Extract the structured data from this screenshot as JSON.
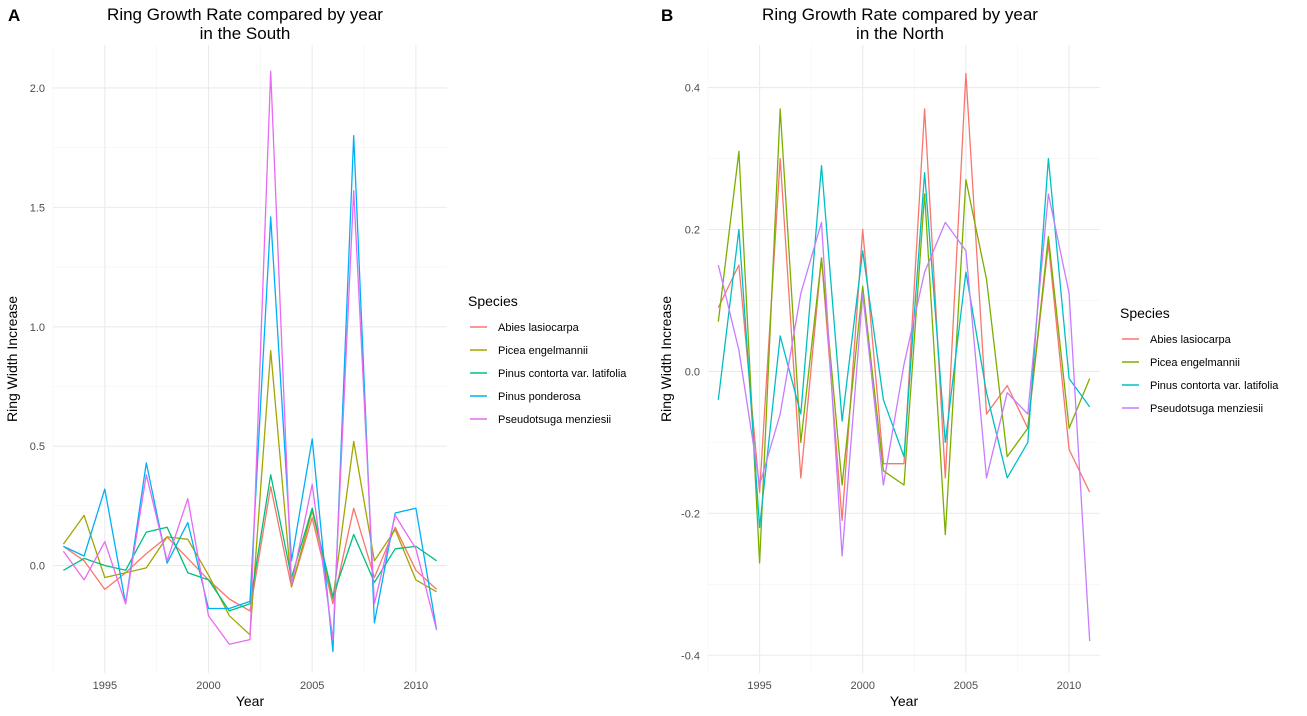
{
  "chart_data": [
    {
      "panel": "A",
      "type": "line",
      "title": "Ring Growth Rate compared by year\nin the South",
      "xlabel": "Year",
      "ylabel": "Ring Width Increase",
      "xlim": [
        1992.5,
        2011.5
      ],
      "ylim": [
        -0.45,
        2.18
      ],
      "x_ticks": [
        1995,
        2000,
        2005,
        2010
      ],
      "y_ticks": [
        0.0,
        0.5,
        1.0,
        1.5,
        2.0
      ],
      "y_tick_labels": [
        "0.0",
        "0.5",
        "1.0",
        "1.5",
        "2.0"
      ],
      "grid": true,
      "legend_title": "Species",
      "legend_position": "right",
      "x": [
        1993,
        1994,
        1995,
        1996,
        1997,
        1998,
        1999,
        2000,
        2001,
        2002,
        2003,
        2004,
        2005,
        2006,
        2007,
        2008,
        2009,
        2010,
        2011
      ],
      "series": [
        {
          "name": "Abies lasiocarpa",
          "color": "#F8766D",
          "values": [
            0.08,
            0.02,
            -0.1,
            -0.03,
            0.05,
            0.12,
            0.03,
            -0.06,
            -0.14,
            -0.19,
            0.33,
            -0.09,
            0.2,
            -0.16,
            0.24,
            -0.05,
            0.16,
            -0.02,
            -0.1
          ]
        },
        {
          "name": "Picea engelmannii",
          "color": "#A3A500",
          "values": [
            0.09,
            0.21,
            -0.05,
            -0.03,
            -0.01,
            0.12,
            0.11,
            -0.04,
            -0.21,
            -0.29,
            0.9,
            -0.09,
            0.23,
            -0.14,
            0.52,
            0.02,
            0.15,
            -0.06,
            -0.11
          ]
        },
        {
          "name": "Pinus contorta var. latifolia",
          "color": "#00BF7D",
          "values": [
            -0.02,
            0.03,
            0.0,
            -0.02,
            0.14,
            0.16,
            -0.03,
            -0.06,
            -0.19,
            -0.16,
            0.38,
            -0.05,
            0.24,
            -0.13,
            0.13,
            -0.07,
            0.07,
            0.08,
            0.02
          ]
        },
        {
          "name": "Pinus ponderosa",
          "color": "#00B0F6",
          "values": [
            0.08,
            0.04,
            0.32,
            -0.16,
            0.43,
            0.01,
            0.18,
            -0.18,
            -0.18,
            -0.15,
            1.46,
            0.02,
            0.53,
            -0.36,
            1.8,
            -0.24,
            0.22,
            0.24,
            -0.27
          ]
        },
        {
          "name": "Pseudotsuga menziesii",
          "color": "#E76BF3",
          "values": [
            0.06,
            -0.06,
            0.1,
            -0.16,
            0.38,
            0.02,
            0.28,
            -0.21,
            -0.33,
            -0.31,
            2.07,
            -0.08,
            0.34,
            -0.31,
            1.57,
            -0.16,
            0.21,
            0.07,
            -0.27
          ]
        }
      ]
    },
    {
      "panel": "B",
      "type": "line",
      "title": "Ring Growth Rate compared by year\nin the North",
      "xlabel": "Year",
      "ylabel": "Ring Width Increase",
      "xlim": [
        1992.5,
        2011.5
      ],
      "ylim": [
        -0.425,
        0.46
      ],
      "x_ticks": [
        1995,
        2000,
        2005,
        2010
      ],
      "y_ticks": [
        -0.4,
        -0.2,
        0.0,
        0.2,
        0.4
      ],
      "y_tick_labels": [
        "-0.4",
        "-0.2",
        "0.0",
        "0.2",
        "0.4"
      ],
      "grid": true,
      "legend_title": "Species",
      "legend_position": "right",
      "x": [
        1993,
        1994,
        1995,
        1996,
        1997,
        1998,
        1999,
        2000,
        2001,
        2002,
        2003,
        2004,
        2005,
        2006,
        2007,
        2008,
        2009,
        2010,
        2011
      ],
      "series": [
        {
          "name": "Abies lasiocarpa",
          "color": "#F8766D",
          "values": [
            0.09,
            0.15,
            -0.17,
            0.3,
            -0.15,
            0.16,
            -0.21,
            0.2,
            -0.13,
            -0.13,
            0.37,
            -0.15,
            0.42,
            -0.06,
            -0.02,
            -0.08,
            0.18,
            -0.11,
            -0.17
          ]
        },
        {
          "name": "Picea engelmannii",
          "color": "#7CAE00",
          "values": [
            0.07,
            0.31,
            -0.27,
            0.37,
            -0.1,
            0.16,
            -0.16,
            0.12,
            -0.14,
            -0.16,
            0.25,
            -0.23,
            0.27,
            0.13,
            -0.12,
            -0.08,
            0.19,
            -0.08,
            -0.01
          ]
        },
        {
          "name": "Pinus contorta var. latifolia",
          "color": "#00BFC4",
          "values": [
            -0.04,
            0.2,
            -0.22,
            0.05,
            -0.06,
            0.29,
            -0.07,
            0.17,
            -0.04,
            -0.12,
            0.28,
            -0.1,
            0.14,
            -0.03,
            -0.15,
            -0.1,
            0.3,
            -0.01,
            -0.05
          ]
        },
        {
          "name": "Pseudotsuga menziesii",
          "color": "#C77CFF",
          "values": [
            0.15,
            0.03,
            -0.16,
            -0.06,
            0.11,
            0.21,
            -0.26,
            0.11,
            -0.16,
            0.01,
            0.14,
            0.21,
            0.17,
            -0.15,
            -0.03,
            -0.06,
            0.25,
            0.11,
            -0.38
          ]
        }
      ]
    }
  ]
}
